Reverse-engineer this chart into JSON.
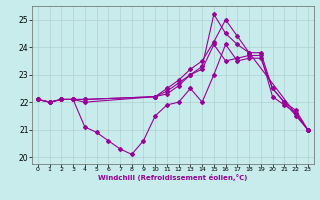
{
  "xlabel": "Windchill (Refroidissement éolien,°C)",
  "bg_color": "#c8ecec",
  "line_color": "#990099",
  "grid_color": "#b0d0d0",
  "xlim": [
    -0.5,
    23.5
  ],
  "ylim": [
    19.75,
    25.5
  ],
  "yticks": [
    20,
    21,
    22,
    23,
    24,
    25
  ],
  "xticks": [
    0,
    1,
    2,
    3,
    4,
    5,
    6,
    7,
    8,
    9,
    10,
    11,
    12,
    13,
    14,
    15,
    16,
    17,
    18,
    19,
    20,
    21,
    22,
    23
  ],
  "series": [
    {
      "x": [
        0,
        1,
        2,
        3,
        4,
        5,
        6,
        7,
        8,
        9,
        10,
        11,
        12,
        13,
        14,
        15,
        16,
        17,
        18,
        19,
        20,
        21,
        22,
        23
      ],
      "y": [
        22.1,
        22.0,
        22.1,
        22.1,
        21.1,
        20.9,
        20.6,
        20.3,
        20.1,
        20.6,
        21.5,
        21.9,
        22.0,
        22.5,
        22.0,
        23.0,
        24.1,
        23.5,
        23.6,
        23.6,
        22.5,
        22.0,
        21.5,
        21.0
      ]
    },
    {
      "x": [
        0,
        1,
        2,
        3,
        4,
        10,
        11,
        12,
        13,
        14,
        15,
        16,
        17,
        18,
        23
      ],
      "y": [
        22.1,
        22.0,
        22.1,
        22.1,
        22.0,
        22.2,
        22.4,
        22.7,
        23.0,
        23.3,
        25.2,
        24.5,
        24.1,
        23.8,
        21.0
      ]
    },
    {
      "x": [
        0,
        1,
        2,
        3,
        4,
        10,
        11,
        12,
        13,
        14,
        15,
        16,
        17,
        18,
        19,
        20,
        21,
        22,
        23
      ],
      "y": [
        22.1,
        22.0,
        22.1,
        22.1,
        22.1,
        22.2,
        22.5,
        22.8,
        23.2,
        23.5,
        24.2,
        25.0,
        24.4,
        23.8,
        23.8,
        22.5,
        22.0,
        21.7,
        21.0
      ]
    },
    {
      "x": [
        0,
        1,
        2,
        3,
        4,
        10,
        11,
        12,
        13,
        14,
        15,
        16,
        17,
        18,
        19,
        20,
        21,
        22,
        23
      ],
      "y": [
        22.1,
        22.0,
        22.1,
        22.1,
        22.1,
        22.2,
        22.3,
        22.6,
        23.0,
        23.2,
        24.1,
        23.5,
        23.6,
        23.7,
        23.7,
        22.2,
        21.9,
        21.6,
        21.0
      ]
    }
  ]
}
